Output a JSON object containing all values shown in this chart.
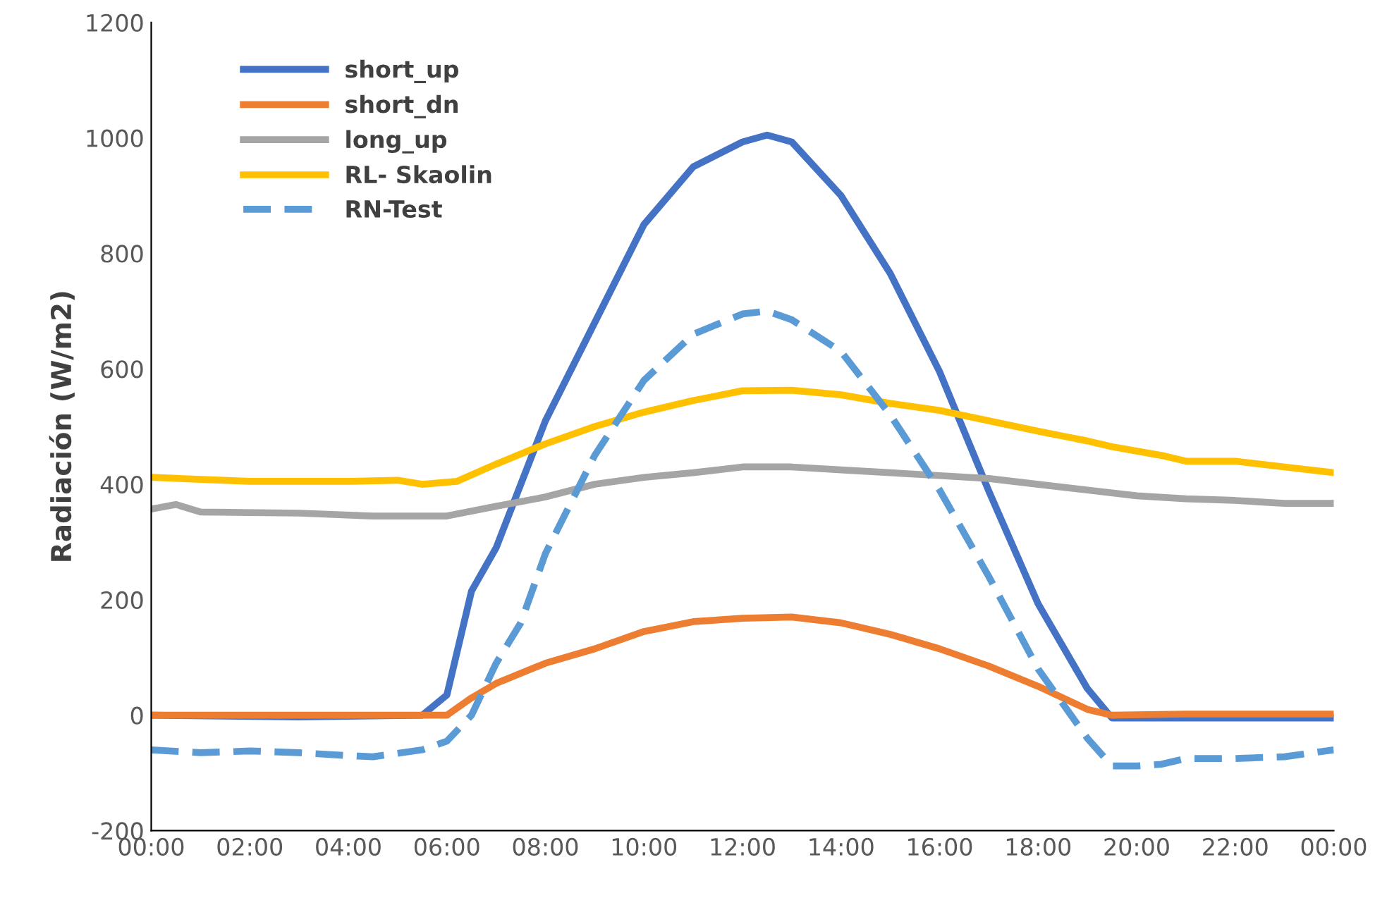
{
  "chart_data": {
    "type": "line",
    "ylabel": "Radiación (W/m2)",
    "xlim": [
      0,
      24
    ],
    "ylim": [
      -200,
      1200
    ],
    "xticks": [
      {
        "value": 0,
        "label": "00:00"
      },
      {
        "value": 2,
        "label": "02:00"
      },
      {
        "value": 4,
        "label": "04:00"
      },
      {
        "value": 6,
        "label": "06:00"
      },
      {
        "value": 8,
        "label": "08:00"
      },
      {
        "value": 10,
        "label": "10:00"
      },
      {
        "value": 12,
        "label": "12:00"
      },
      {
        "value": 14,
        "label": "14:00"
      },
      {
        "value": 16,
        "label": "16:00"
      },
      {
        "value": 18,
        "label": "18:00"
      },
      {
        "value": 20,
        "label": "20:00"
      },
      {
        "value": 22,
        "label": "22:00"
      },
      {
        "value": 24,
        "label": "00:00"
      }
    ],
    "yticks": [
      -200,
      0,
      200,
      400,
      600,
      800,
      1000,
      1200
    ],
    "grid": false,
    "legend": "top left",
    "marker": "none",
    "series": [
      {
        "name": "short_up",
        "color": "#4472c4",
        "line_style": "solid",
        "x": [
          0,
          3,
          5.5,
          6,
          6.5,
          7,
          8,
          9,
          10,
          11,
          12,
          12.5,
          13,
          14,
          15,
          16,
          17,
          18,
          19,
          19.5,
          21,
          24
        ],
        "values": [
          0,
          -3,
          0,
          35,
          215,
          290,
          510,
          680,
          850,
          950,
          993,
          1005,
          993,
          900,
          765,
          595,
          388,
          193,
          46,
          -5,
          -5,
          -5
        ]
      },
      {
        "name": "short_dn",
        "color": "#ed7d31",
        "line_style": "solid",
        "x": [
          0,
          3,
          6,
          6.5,
          7,
          8,
          9,
          10,
          11,
          12,
          13,
          14,
          15,
          16,
          17,
          18,
          19,
          19.5,
          21,
          24
        ],
        "values": [
          0,
          0,
          0,
          30,
          55,
          90,
          115,
          145,
          162,
          168,
          170,
          160,
          140,
          115,
          85,
          50,
          10,
          0,
          2,
          2
        ]
      },
      {
        "name": "long_up",
        "color": "#a5a5a5",
        "line_style": "solid",
        "x": [
          0,
          0.5,
          1,
          3,
          4.5,
          6,
          7,
          8,
          9,
          10,
          11,
          12,
          13,
          14,
          15,
          16,
          17,
          18,
          19,
          20,
          21,
          22,
          23,
          24
        ],
        "values": [
          357,
          365,
          352,
          350,
          345,
          345,
          362,
          378,
          400,
          412,
          420,
          430,
          430,
          425,
          420,
          415,
          410,
          400,
          390,
          380,
          375,
          372,
          367,
          367
        ]
      },
      {
        "name": "RL- Skaolin",
        "color": "#ffc000",
        "line_style": "solid",
        "x": [
          0,
          2,
          4,
          5,
          5.5,
          6.2,
          7,
          8,
          9,
          10,
          11,
          12,
          13,
          14,
          15,
          16,
          17,
          18,
          19,
          19.5,
          20.5,
          21,
          22,
          23,
          24
        ],
        "values": [
          412,
          405,
          405,
          407,
          400,
          405,
          435,
          470,
          500,
          525,
          545,
          562,
          563,
          555,
          540,
          528,
          510,
          492,
          475,
          465,
          450,
          440,
          440,
          430,
          420
        ]
      },
      {
        "name": "RN-Test",
        "color": "#5b9bd5",
        "line_style": "dashed",
        "x": [
          0,
          1,
          2,
          3,
          4,
          4.5,
          5.5,
          6,
          6.5,
          7,
          7.5,
          8,
          9,
          10,
          11,
          12,
          12.5,
          13,
          14,
          15,
          16,
          17,
          18,
          19,
          19.5,
          20,
          20.5,
          21,
          22,
          23,
          24
        ],
        "values": [
          -60,
          -65,
          -62,
          -65,
          -70,
          -72,
          -60,
          -45,
          0,
          90,
          160,
          280,
          450,
          580,
          660,
          695,
          700,
          685,
          630,
          520,
          390,
          240,
          80,
          -40,
          -88,
          -88,
          -85,
          -75,
          -75,
          -72,
          -60
        ]
      }
    ]
  }
}
